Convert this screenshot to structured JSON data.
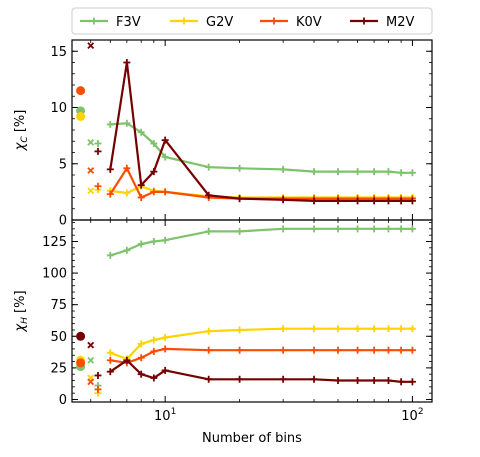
{
  "chart_data": {
    "type": "line",
    "xlabel": "Number of bins",
    "x_scale": "log",
    "xlim": [
      4.2,
      120
    ],
    "legend": {
      "placement": "top",
      "entries": [
        "F3V",
        "G2V",
        "K0V",
        "M2V"
      ]
    },
    "colors": {
      "F3V": "#7dc36b",
      "G2V": "#fdd400",
      "K0V": "#fc4c00",
      "M2V": "#760000"
    },
    "x_ticks": [
      {
        "value": 10,
        "label": "10",
        "base": "10",
        "exp": "1"
      },
      {
        "value": 100,
        "label": "100",
        "base": "10",
        "exp": "2"
      }
    ],
    "panels": [
      {
        "id": "top",
        "ylabel": "χ_C [%]",
        "ylabel_main": "χ",
        "ylabel_sub": "C",
        "ylabel_unit": "[%]",
        "ylim": [
          0,
          16
        ],
        "yticks": [
          0,
          5,
          10,
          15
        ],
        "x": [
          6,
          7,
          8,
          9,
          10,
          15,
          20,
          30,
          40,
          50,
          60,
          70,
          80,
          90,
          100
        ],
        "series": [
          {
            "name": "F3V",
            "values": [
              8.5,
              8.6,
              7.8,
              6.8,
              5.6,
              4.7,
              4.6,
              4.5,
              4.3,
              4.3,
              4.3,
              4.3,
              4.3,
              4.2,
              4.2
            ]
          },
          {
            "name": "G2V",
            "values": [
              2.6,
              2.4,
              3.0,
              2.6,
              2.5,
              2.1,
              2.0,
              2.0,
              2.0,
              2.0,
              2.0,
              2.0,
              2.0,
              2.0,
              2.0
            ]
          },
          {
            "name": "K0V",
            "values": [
              2.3,
              4.6,
              2.0,
              2.5,
              2.5,
              2.0,
              1.9,
              1.9,
              1.9,
              1.9,
              1.9,
              1.9,
              1.9,
              1.9,
              1.9
            ]
          },
          {
            "name": "M2V",
            "values": [
              4.5,
              14.0,
              3.1,
              4.3,
              7.1,
              2.2,
              1.9,
              1.8,
              1.7,
              1.7,
              1.7,
              1.7,
              1.7,
              1.7,
              1.7
            ]
          }
        ],
        "extra_markers": [
          {
            "series": "F3V",
            "shape": "circle",
            "x": 4.55,
            "y": 9.7
          },
          {
            "series": "G2V",
            "shape": "circle",
            "x": 4.55,
            "y": 9.2
          },
          {
            "series": "K0V",
            "shape": "circle",
            "x": 4.55,
            "y": 11.5
          },
          {
            "series": "F3V",
            "shape": "x",
            "x": 5.0,
            "y": 6.9
          },
          {
            "series": "G2V",
            "shape": "x",
            "x": 5.0,
            "y": 2.6
          },
          {
            "series": "K0V",
            "shape": "x",
            "x": 5.0,
            "y": 4.4
          },
          {
            "series": "M2V",
            "shape": "x",
            "x": 5.0,
            "y": 15.5
          },
          {
            "series": "F3V",
            "shape": "plus",
            "x": 5.35,
            "y": 6.8
          },
          {
            "series": "G2V",
            "shape": "plus",
            "x": 5.35,
            "y": 2.7
          },
          {
            "series": "K0V",
            "shape": "plus",
            "x": 5.35,
            "y": 3.0
          },
          {
            "series": "M2V",
            "shape": "plus",
            "x": 5.35,
            "y": 6.1
          }
        ]
      },
      {
        "id": "bottom",
        "ylabel": "χ_H [%]",
        "ylabel_main": "χ",
        "ylabel_sub": "H",
        "ylabel_unit": "[%]",
        "ylim": [
          -2,
          142
        ],
        "yticks": [
          0,
          25,
          50,
          75,
          100,
          125
        ],
        "x": [
          6,
          7,
          8,
          9,
          10,
          15,
          20,
          30,
          40,
          50,
          60,
          70,
          80,
          90,
          100
        ],
        "series": [
          {
            "name": "F3V",
            "values": [
              114,
              118,
              123,
              125,
              126,
              133,
              133,
              135,
              135,
              135,
              135,
              135,
              135,
              135,
              135
            ]
          },
          {
            "name": "G2V",
            "values": [
              37,
              32,
              44,
              47,
              49,
              54,
              55,
              56,
              56,
              56,
              56,
              56,
              56,
              56,
              56
            ]
          },
          {
            "name": "K0V",
            "values": [
              31,
              29,
              33,
              38,
              40,
              39,
              39,
              39,
              39,
              39,
              39,
              39,
              39,
              39,
              39
            ]
          },
          {
            "name": "M2V",
            "values": [
              22,
              31,
              20,
              17,
              23,
              16,
              16,
              16,
              16,
              15,
              15,
              15,
              15,
              14,
              14
            ]
          }
        ],
        "extra_markers": [
          {
            "series": "F3V",
            "shape": "circle",
            "x": 4.55,
            "y": 26
          },
          {
            "series": "G2V",
            "shape": "circle",
            "x": 4.55,
            "y": 31
          },
          {
            "series": "K0V",
            "shape": "circle",
            "x": 4.55,
            "y": 29
          },
          {
            "series": "M2V",
            "shape": "circle",
            "x": 4.55,
            "y": 50
          },
          {
            "series": "F3V",
            "shape": "x",
            "x": 5.0,
            "y": 31
          },
          {
            "series": "G2V",
            "shape": "x",
            "x": 5.0,
            "y": 17
          },
          {
            "series": "K0V",
            "shape": "x",
            "x": 5.0,
            "y": 14
          },
          {
            "series": "M2V",
            "shape": "x",
            "x": 5.0,
            "y": 43
          },
          {
            "series": "F3V",
            "shape": "plus",
            "x": 5.35,
            "y": 11
          },
          {
            "series": "G2V",
            "shape": "plus",
            "x": 5.35,
            "y": 5
          },
          {
            "series": "K0V",
            "shape": "plus",
            "x": 5.35,
            "y": 8
          },
          {
            "series": "M2V",
            "shape": "plus",
            "x": 5.35,
            "y": 19
          }
        ]
      }
    ]
  }
}
